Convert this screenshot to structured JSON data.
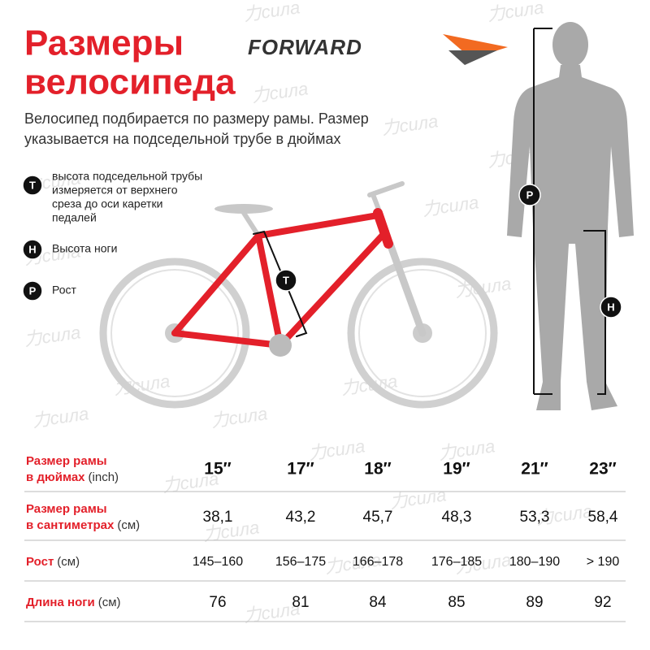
{
  "header": {
    "title_lines": [
      "Размеры",
      "велосипеда"
    ],
    "brand": "FORWARD",
    "subtitle_lines": [
      "Велосипед подбирается по размеру рамы. Размер",
      "указывается на подседельной трубе в дюймах"
    ]
  },
  "legend": [
    {
      "badge": "Т",
      "lines": [
        "высота подседельной трубы",
        "измеряется от верхнего",
        "среза до оси каретки",
        "педалей"
      ]
    },
    {
      "badge": "Н",
      "lines": [
        "Высота ноги"
      ]
    },
    {
      "badge": "Р",
      "lines": [
        "Рост"
      ]
    }
  ],
  "diagram": {
    "bike_badge": "Т",
    "height_badge": "Р",
    "leg_badge": "Н",
    "watermark": "力сила"
  },
  "table": {
    "rows": [
      {
        "label_lines": [
          "Размер рамы",
          "в дюймах"
        ],
        "unit": "(inch)",
        "cells": [
          "15″",
          "17″",
          "18″",
          "19″",
          "21″",
          "23″"
        ]
      },
      {
        "label_lines": [
          "Размер рамы",
          "в сантиметрах"
        ],
        "unit": "(см)",
        "cells": [
          "38,1",
          "43,2",
          "45,7",
          "48,3",
          "53,3",
          "58,4"
        ]
      },
      {
        "label_lines": [
          "Рост"
        ],
        "unit": "(см)",
        "cells": [
          "145–160",
          "156–175",
          "166–178",
          "176–185",
          "180–190",
          "> 190"
        ]
      },
      {
        "label_lines": [
          "Длина ноги"
        ],
        "unit": "(см)",
        "cells": [
          "76",
          "81",
          "84",
          "85",
          "89",
          "92"
        ]
      }
    ]
  }
}
